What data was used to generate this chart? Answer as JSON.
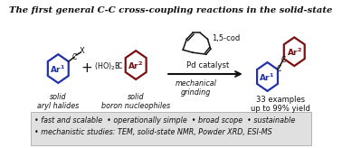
{
  "title": "The first general C-C cross-coupling reactions in the solid-state",
  "bullet_line1": "• fast and scalable  • operationally simple  • broad scope  • sustainable",
  "bullet_line2": "• mechanistic studies: TEM, solid-state NMR, Powder XRD, ESI-MS",
  "bullet_fontsize": 5.8,
  "title_fontsize": 7.2,
  "bullet_bg_color": "#e0e0e0",
  "bg_color": "#ffffff",
  "blue_color": "#2233aa",
  "dark_red_color": "#7a1010",
  "black_color": "#111111",
  "label_solid1": "solid\naryl halides",
  "label_solid2": "solid\nboron nucleophiles",
  "label_product": "33 examples\nup to 99% yield",
  "reagent_cod": "1,5-cod",
  "reagent_pd": "Pd catalyst",
  "reagent_mech": "mechanical\ngrinding"
}
